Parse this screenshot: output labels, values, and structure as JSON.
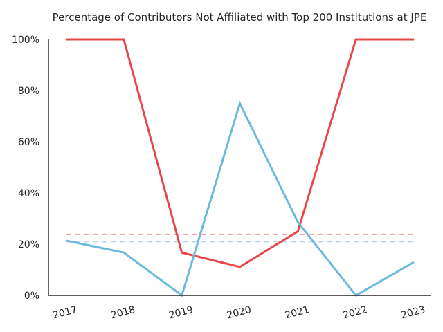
{
  "chart_data": {
    "type": "line",
    "title": "Percentage of Contributors Not Affiliated with Top 200 Institutions at JPE",
    "xlabel": "",
    "ylabel": "",
    "categories": [
      "2017",
      "2018",
      "2019",
      "2020",
      "2021",
      "2022",
      "2023"
    ],
    "ylim": [
      0,
      100
    ],
    "y_ticks": [
      "0%",
      "20%",
      "40%",
      "60%",
      "80%",
      "100%"
    ],
    "y_tick_values": [
      0,
      20,
      40,
      60,
      80,
      100
    ],
    "grid": false,
    "legend": "none",
    "series": [
      {
        "color": "#e8474a",
        "values": [
          100,
          100,
          16.7,
          11.1,
          25.0,
          100,
          100
        ]
      },
      {
        "color": "#6bb9dd",
        "values": [
          21.4,
          16.7,
          0,
          75.0,
          28.6,
          0,
          13.0
        ]
      }
    ],
    "reference_lines": [
      {
        "color": "#f2a3a4",
        "value": 23.8,
        "style": "dashed"
      },
      {
        "color": "#b3dbee",
        "value": 21.0,
        "style": "dashed"
      }
    ]
  }
}
